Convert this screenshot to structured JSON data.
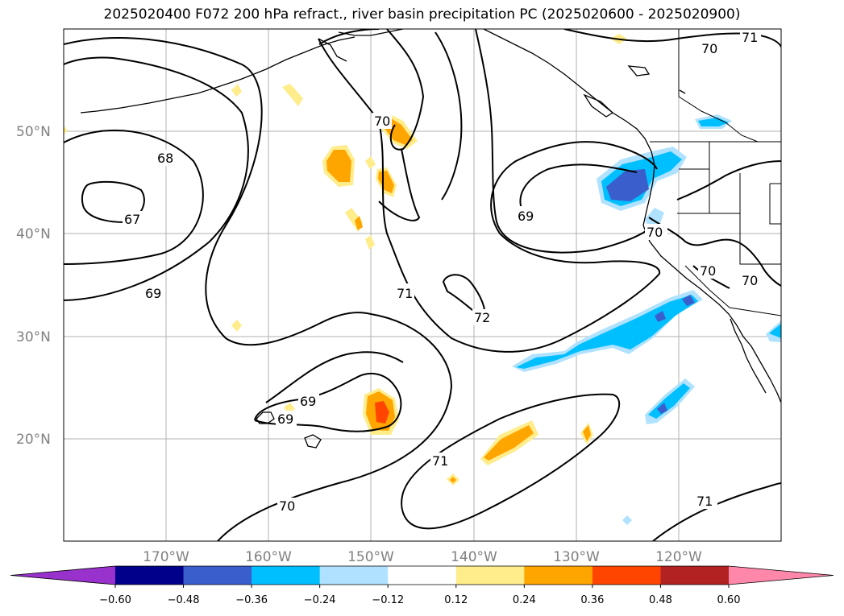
{
  "title": "2025020400 F072 200 hPa refract., river basin precipitation PC (2025020600 - 2025020900)",
  "lat_labels": [
    "50°N",
    "40°N",
    "30°N",
    "20°N"
  ],
  "lon_labels": [
    "170°W",
    "160°W",
    "150°W",
    "140°W",
    "130°W",
    "120°W"
  ],
  "contour_labels": [
    "71",
    "70",
    "68",
    "67",
    "69",
    "70",
    "71",
    "72",
    "69",
    "70",
    "70",
    "70",
    "69",
    "69",
    "71",
    "70",
    "71"
  ],
  "colorbar": {
    "colors": [
      "#9932cc",
      "#00008b",
      "#3a5fcd",
      "#00bfff",
      "#b0e2ff",
      "#ffffff",
      "#ffec8b",
      "#ffa500",
      "#ff4500",
      "#b22222",
      "#ff88aa"
    ],
    "ticks": [
      "−0.60",
      "−0.48",
      "−0.36",
      "−0.24",
      "−0.12",
      "0.12",
      "0.24",
      "0.36",
      "0.48",
      "0.60"
    ]
  }
}
